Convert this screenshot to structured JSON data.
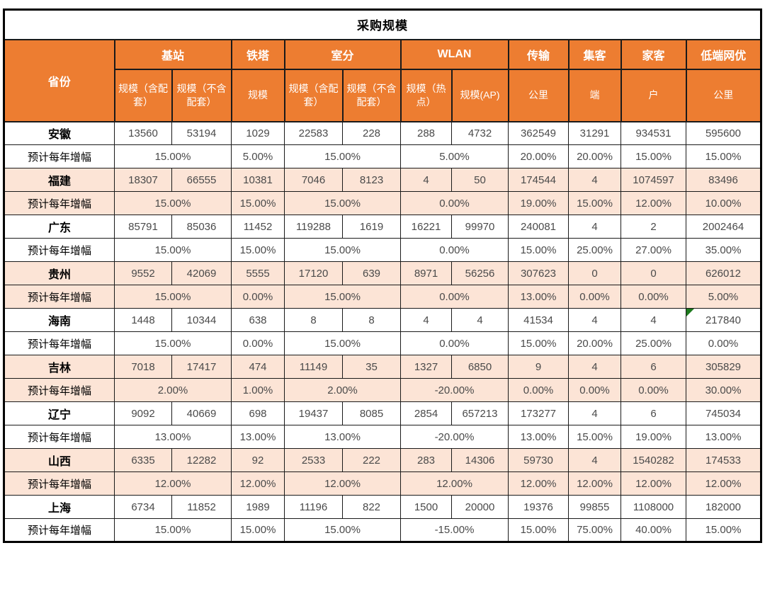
{
  "title": "采购规模",
  "header": {
    "province": "省份",
    "groups": [
      {
        "label": "基站",
        "cols": [
          "规模（含配套）",
          "规模（不含配套）"
        ]
      },
      {
        "label": "铁塔",
        "cols": [
          "规模"
        ]
      },
      {
        "label": "室分",
        "cols": [
          "规模（含配套）",
          "规模（不含配套）"
        ]
      },
      {
        "label": "WLAN",
        "cols": [
          "规模（热点）",
          "规模(AP)"
        ]
      },
      {
        "label": "传输",
        "cols": [
          "公里"
        ]
      },
      {
        "label": "集客",
        "cols": [
          "端"
        ]
      },
      {
        "label": "家客",
        "cols": [
          "户"
        ]
      },
      {
        "label": "低端网优",
        "cols": [
          "公里"
        ]
      }
    ]
  },
  "growth_row_label": "预计每年增幅",
  "provinces": [
    {
      "name": "安徽",
      "shaded": false,
      "values": [
        "13560",
        "53194",
        "1029",
        "22583",
        "228",
        "288",
        "4732",
        "362549",
        "31291",
        "934531",
        "595600"
      ],
      "growth": [
        "15.00%",
        "5.00%",
        "15.00%",
        "5.00%",
        "20.00%",
        "20.00%",
        "15.00%",
        "15.00%"
      ],
      "flag_cell": null
    },
    {
      "name": "福建",
      "shaded": true,
      "values": [
        "18307",
        "66555",
        "10381",
        "7046",
        "8123",
        "4",
        "50",
        "174544",
        "4",
        "1074597",
        "83496"
      ],
      "growth": [
        "15.00%",
        "15.00%",
        "15.00%",
        "0.00%",
        "19.00%",
        "15.00%",
        "12.00%",
        "10.00%"
      ],
      "flag_cell": null
    },
    {
      "name": "广东",
      "shaded": false,
      "values": [
        "85791",
        "85036",
        "11452",
        "119288",
        "1619",
        "16221",
        "99970",
        "240081",
        "4",
        "2",
        "2002464"
      ],
      "growth": [
        "15.00%",
        "15.00%",
        "15.00%",
        "0.00%",
        "15.00%",
        "25.00%",
        "27.00%",
        "35.00%"
      ],
      "flag_cell": null
    },
    {
      "name": "贵州",
      "shaded": true,
      "values": [
        "9552",
        "42069",
        "5555",
        "17120",
        "639",
        "8971",
        "56256",
        "307623",
        "0",
        "0",
        "626012"
      ],
      "growth": [
        "15.00%",
        "0.00%",
        "15.00%",
        "0.00%",
        "13.00%",
        "0.00%",
        "0.00%",
        "5.00%"
      ],
      "flag_cell": null
    },
    {
      "name": "海南",
      "shaded": false,
      "values": [
        "1448",
        "10344",
        "638",
        "8",
        "8",
        "4",
        "4",
        "41534",
        "4",
        "4",
        "217840"
      ],
      "growth": [
        "15.00%",
        "0.00%",
        "15.00%",
        "0.00%",
        "15.00%",
        "20.00%",
        "25.00%",
        "0.00%"
      ],
      "flag_cell": 10
    },
    {
      "name": "吉林",
      "shaded": true,
      "values": [
        "7018",
        "17417",
        "474",
        "11149",
        "35",
        "1327",
        "6850",
        "9",
        "4",
        "6",
        "305829"
      ],
      "growth": [
        "2.00%",
        "1.00%",
        "2.00%",
        "-20.00%",
        "0.00%",
        "0.00%",
        "0.00%",
        "30.00%"
      ],
      "flag_cell": null
    },
    {
      "name": "辽宁",
      "shaded": false,
      "values": [
        "9092",
        "40669",
        "698",
        "19437",
        "8085",
        "2854",
        "657213",
        "173277",
        "4",
        "6",
        "745034"
      ],
      "growth": [
        "13.00%",
        "13.00%",
        "13.00%",
        "-20.00%",
        "13.00%",
        "15.00%",
        "19.00%",
        "13.00%"
      ],
      "flag_cell": null
    },
    {
      "name": "山西",
      "shaded": true,
      "values": [
        "6335",
        "12282",
        "92",
        "2533",
        "222",
        "283",
        "14306",
        "59730",
        "4",
        "1540282",
        "174533"
      ],
      "growth": [
        "12.00%",
        "12.00%",
        "12.00%",
        "12.00%",
        "12.00%",
        "12.00%",
        "12.00%",
        "12.00%"
      ],
      "flag_cell": null
    },
    {
      "name": "上海",
      "shaded": false,
      "values": [
        "6734",
        "11852",
        "1989",
        "11196",
        "822",
        "1500",
        "20000",
        "19376",
        "99855",
        "1108000",
        "182000"
      ],
      "growth": [
        "15.00%",
        "15.00%",
        "15.00%",
        "-15.00%",
        "15.00%",
        "75.00%",
        "40.00%",
        "15.00%"
      ],
      "flag_cell": null
    }
  ],
  "colors": {
    "header_bg": "#ED7D31",
    "shaded_row_bg": "#FCE4D6",
    "header_text": "#ffffff",
    "value_text": "#4a4a4a",
    "border": "#1a1a1a",
    "flag_green": "#1d7a1d"
  }
}
